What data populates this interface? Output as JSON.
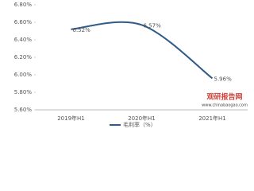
{
  "chart_data": {
    "type": "line",
    "categories": [
      "2019年H1",
      "2020年H1",
      "2021年H1"
    ],
    "series": [
      {
        "name": "毛利率（%）",
        "color": "#2f5b86",
        "values": [
          6.52,
          6.57,
          5.96
        ],
        "value_labels": [
          "6.52%",
          "6.57%",
          "5.96%"
        ]
      }
    ],
    "ylim": [
      5.6,
      6.8
    ],
    "yticks": [
      {
        "value": 5.6,
        "label": "5.60%"
      },
      {
        "value": 5.8,
        "label": "5.80%"
      },
      {
        "value": 6.0,
        "label": "6.00%"
      },
      {
        "value": 6.2,
        "label": "6.20%"
      },
      {
        "value": 6.4,
        "label": "6.40%"
      },
      {
        "value": 6.6,
        "label": "6.60%"
      },
      {
        "value": 6.8,
        "label": "6.80%"
      }
    ],
    "grid": false,
    "legend": "bottom",
    "watermark": {
      "title": "观研报告网",
      "url": "www.chinabaogao.com"
    }
  }
}
